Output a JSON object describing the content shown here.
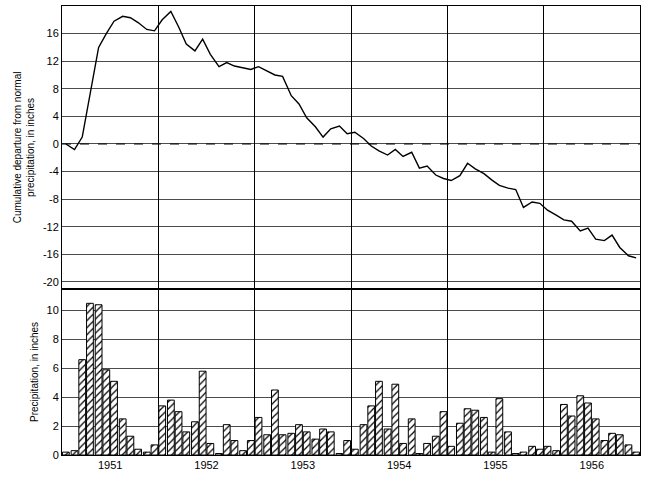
{
  "chart_data": [
    {
      "type": "line",
      "ylabel": [
        "Cumulative departure from normal",
        "precipitation, in inches"
      ],
      "x": [
        1951.04,
        1951.13,
        1951.21,
        1951.29,
        1951.38,
        1951.46,
        1951.54,
        1951.63,
        1951.71,
        1951.79,
        1951.88,
        1951.96,
        1952.04,
        1952.13,
        1952.21,
        1952.29,
        1952.38,
        1952.46,
        1952.54,
        1952.63,
        1952.71,
        1952.79,
        1952.88,
        1952.96,
        1953.04,
        1953.13,
        1953.21,
        1953.29,
        1953.38,
        1953.46,
        1953.54,
        1953.63,
        1953.71,
        1953.79,
        1953.88,
        1953.96,
        1954.04,
        1954.13,
        1954.21,
        1954.29,
        1954.38,
        1954.46,
        1954.54,
        1954.63,
        1954.71,
        1954.79,
        1954.88,
        1954.96,
        1955.04,
        1955.13,
        1955.21,
        1955.29,
        1955.38,
        1955.46,
        1955.54,
        1955.63,
        1955.71,
        1955.79,
        1955.88,
        1955.96,
        1956.04,
        1956.13,
        1956.21,
        1956.29,
        1956.38,
        1956.46,
        1956.54,
        1956.63,
        1956.71,
        1956.79,
        1956.88,
        1956.96
      ],
      "values": [
        0,
        -0.8,
        1,
        7,
        14,
        16,
        17.8,
        18.5,
        18.3,
        17.6,
        16.6,
        16.4,
        18,
        19.2,
        17,
        14.5,
        13.5,
        15.2,
        13,
        11.2,
        11.8,
        11.3,
        11,
        10.8,
        11.2,
        10.5,
        10,
        9.8,
        7,
        5.8,
        3.8,
        2.5,
        1,
        2.2,
        2.6,
        1.5,
        1.7,
        0.8,
        -0.3,
        -1,
        -1.6,
        -0.8,
        -1.8,
        -1.2,
        -3.5,
        -3.2,
        -4.5,
        -5,
        -5.3,
        -4.6,
        -2.8,
        -3.6,
        -4.3,
        -5.2,
        -6,
        -6.4,
        -6.6,
        -9.2,
        -8.4,
        -8.6,
        -9.6,
        -10.3,
        -11,
        -11.2,
        -12.6,
        -12.2,
        -13.8,
        -14,
        -13.2,
        -15,
        -16.2,
        -16.5
      ],
      "color": "#000000",
      "hline": 0,
      "xlim": [
        1951,
        1957
      ],
      "xticks": [
        {
          "value": 1951.5,
          "label": "1951"
        },
        {
          "value": 1952.5,
          "label": "1952"
        },
        {
          "value": 1953.5,
          "label": "1953"
        },
        {
          "value": 1954.5,
          "label": "1954"
        },
        {
          "value": 1955.5,
          "label": "1955"
        },
        {
          "value": 1956.5,
          "label": "1956"
        }
      ],
      "ylim": [
        -21,
        20
      ],
      "yticks": [
        -20,
        -16,
        -12,
        -8,
        -4,
        0,
        4,
        8,
        12,
        16
      ],
      "grid": true,
      "tick_labels": "y"
    },
    {
      "type": "bar",
      "ylabel": [
        "Precipitation, in inches"
      ],
      "x": [
        1951.04,
        1951.13,
        1951.21,
        1951.29,
        1951.38,
        1951.46,
        1951.54,
        1951.63,
        1951.71,
        1951.79,
        1951.88,
        1951.96,
        1952.04,
        1952.13,
        1952.21,
        1952.29,
        1952.38,
        1952.46,
        1952.54,
        1952.63,
        1952.71,
        1952.79,
        1952.88,
        1952.96,
        1953.04,
        1953.13,
        1953.21,
        1953.29,
        1953.38,
        1953.46,
        1953.54,
        1953.63,
        1953.71,
        1953.79,
        1953.88,
        1953.96,
        1954.04,
        1954.13,
        1954.21,
        1954.29,
        1954.38,
        1954.46,
        1954.54,
        1954.63,
        1954.71,
        1954.79,
        1954.88,
        1954.96,
        1955.04,
        1955.13,
        1955.21,
        1955.29,
        1955.38,
        1955.46,
        1955.54,
        1955.63,
        1955.71,
        1955.79,
        1955.88,
        1955.96,
        1956.04,
        1956.13,
        1956.21,
        1956.29,
        1956.38,
        1956.46,
        1956.54,
        1956.63,
        1956.71,
        1956.79,
        1956.88,
        1956.96
      ],
      "values": [
        0.2,
        0.3,
        6.6,
        10.5,
        10.4,
        5.9,
        5.1,
        2.5,
        1.3,
        0.4,
        0.2,
        0.7,
        3.4,
        3.8,
        3.0,
        1.6,
        2.3,
        5.8,
        0.8,
        0.1,
        2.1,
        1.0,
        0.3,
        1.0,
        2.6,
        1.4,
        4.5,
        1.4,
        1.5,
        2.1,
        1.6,
        1.1,
        1.8,
        1.6,
        0.1,
        1.0,
        0.4,
        2.1,
        3.4,
        5.1,
        1.8,
        4.9,
        0.8,
        2.5,
        0.1,
        0.8,
        1.3,
        3.0,
        0.6,
        2.2,
        3.2,
        3.1,
        2.6,
        0.2,
        3.9,
        1.6,
        0.1,
        0.2,
        0.6,
        0.4,
        0.6,
        0.3,
        3.5,
        2.7,
        4.1,
        3.6,
        2.5,
        1.0,
        1.5,
        1.4,
        0.7,
        0.2
      ],
      "color": "#000000",
      "xlim": [
        1951,
        1957
      ],
      "xticks": [
        {
          "value": 1951.5,
          "label": "1951"
        },
        {
          "value": 1952.5,
          "label": "1952"
        },
        {
          "value": 1953.5,
          "label": "1953"
        },
        {
          "value": 1954.5,
          "label": "1954"
        },
        {
          "value": 1955.5,
          "label": "1955"
        },
        {
          "value": 1956.5,
          "label": "1956"
        }
      ],
      "ylim": [
        0,
        11.5
      ],
      "yticks": [
        0,
        2,
        4,
        6,
        8,
        10
      ],
      "grid": true
    }
  ]
}
